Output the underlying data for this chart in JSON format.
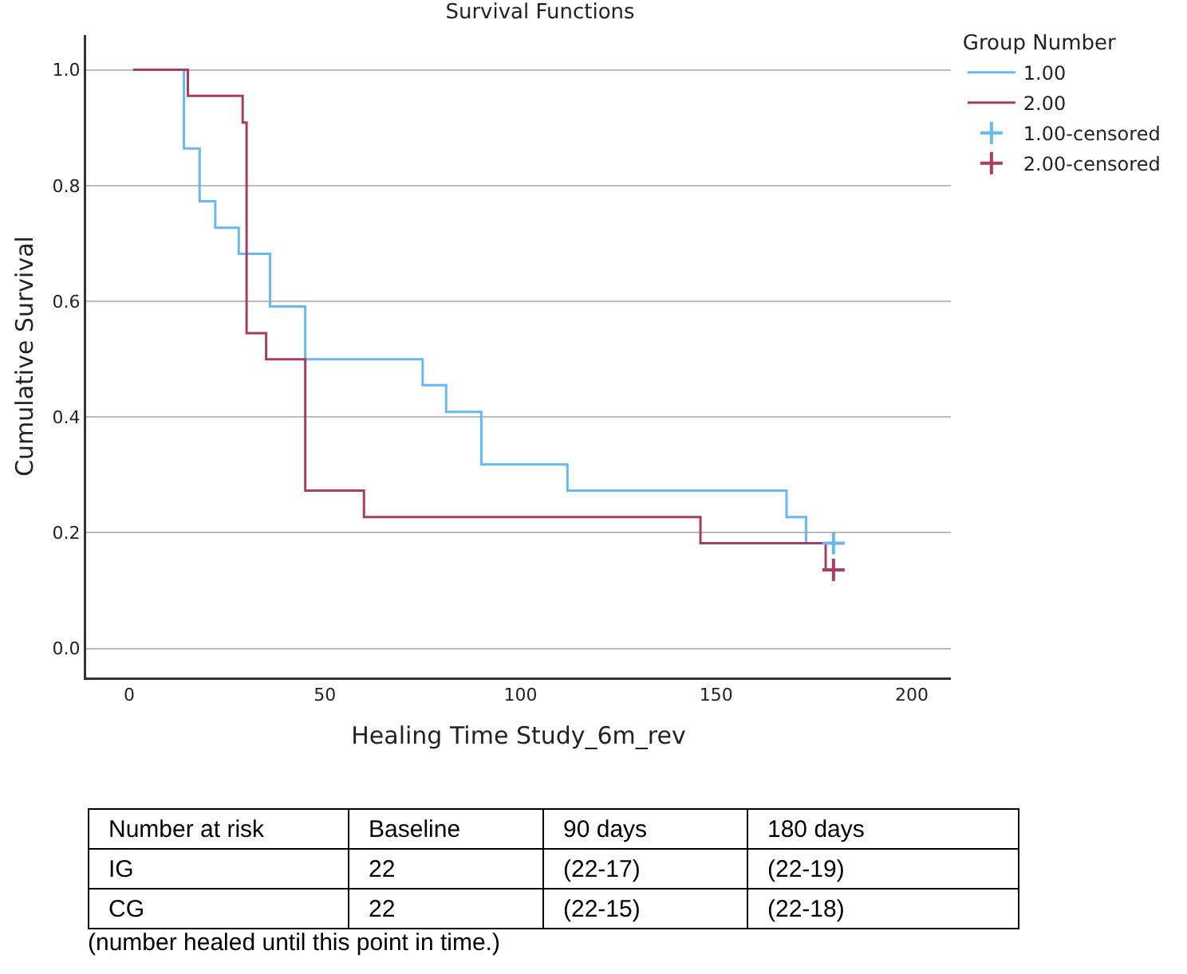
{
  "chart_data": {
    "type": "step",
    "title": "Survival Functions",
    "xlabel": "Healing Time Study_6m_rev",
    "ylabel": "Cumulative Survival",
    "legend_title": "Group Number",
    "xlim": [
      -11,
      210
    ],
    "xticks": [
      0,
      50,
      100,
      150,
      200
    ],
    "ylim": [
      -0.05,
      1.06
    ],
    "yticks": [
      {
        "value": 0,
        "label": "0.0"
      },
      {
        "value": 0.2,
        "label": "0.2"
      },
      {
        "value": 0.4,
        "label": "0.4"
      },
      {
        "value": 0.6,
        "label": "0.6"
      },
      {
        "value": 0.8,
        "label": "0.8"
      },
      {
        "value": 1,
        "label": "1.0"
      }
    ],
    "grid": "y",
    "legend": "top right",
    "series": [
      {
        "name": "1.00",
        "color": "#6ab8f0",
        "marker": "none",
        "x": [
          1,
          14,
          18,
          22,
          28,
          36,
          45,
          75,
          81,
          90,
          112,
          168,
          173,
          180
        ],
        "values": [
          1.0,
          0.864,
          0.773,
          0.727,
          0.682,
          0.591,
          0.5,
          0.455,
          0.409,
          0.318,
          0.273,
          0.227,
          0.182,
          0.182
        ]
      },
      {
        "name": "2.00",
        "color": "#a63d63",
        "marker": "none",
        "x": [
          1,
          15,
          29,
          30,
          35,
          45,
          60,
          146,
          178,
          180
        ],
        "values": [
          1.0,
          0.955,
          0.909,
          0.545,
          0.5,
          0.273,
          0.227,
          0.182,
          0.136,
          0.136
        ]
      },
      {
        "name": "1.00-censored",
        "type": "scatter",
        "color": "#6ab8f0",
        "marker": "cross",
        "x": [
          180
        ],
        "values": [
          0.182
        ]
      },
      {
        "name": "2.00-censored",
        "type": "scatter",
        "color": "#a63d63",
        "marker": "cross",
        "x": [
          180
        ],
        "values": [
          0.136
        ]
      }
    ],
    "annotations": [
      "Number at risk",
      "Baseline",
      "90 days",
      "180 days",
      "IG",
      "22",
      "(22-17)",
      "(22-19)",
      "CG",
      "22",
      "(22-15)",
      "(22-18)",
      "(number healed until this point in time.)"
    ]
  }
}
